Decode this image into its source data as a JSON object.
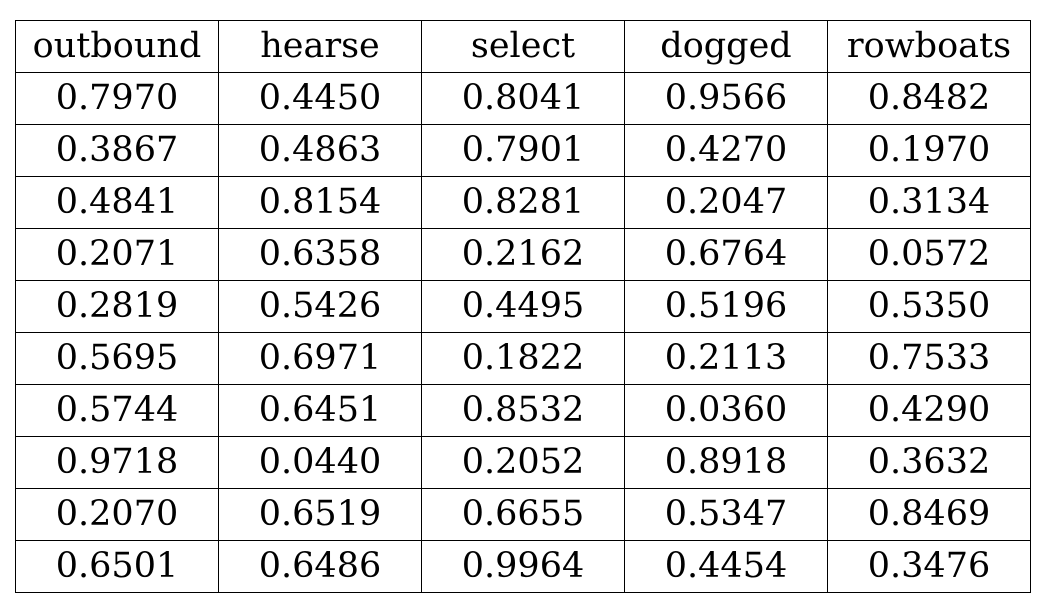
{
  "chart_data": {
    "type": "table",
    "columns": [
      "outbound",
      "hearse",
      "select",
      "dogged",
      "rowboats"
    ],
    "rows": [
      [
        "0.7970",
        "0.4450",
        "0.8041",
        "0.9566",
        "0.8482"
      ],
      [
        "0.3867",
        "0.4863",
        "0.7901",
        "0.4270",
        "0.1970"
      ],
      [
        "0.4841",
        "0.8154",
        "0.8281",
        "0.2047",
        "0.3134"
      ],
      [
        "0.2071",
        "0.6358",
        "0.2162",
        "0.6764",
        "0.0572"
      ],
      [
        "0.2819",
        "0.5426",
        "0.4495",
        "0.5196",
        "0.5350"
      ],
      [
        "0.5695",
        "0.6971",
        "0.1822",
        "0.2113",
        "0.7533"
      ],
      [
        "0.5744",
        "0.6451",
        "0.8532",
        "0.0360",
        "0.4290"
      ],
      [
        "0.9718",
        "0.0440",
        "0.2052",
        "0.8918",
        "0.3632"
      ],
      [
        "0.2070",
        "0.6519",
        "0.6655",
        "0.5347",
        "0.8469"
      ],
      [
        "0.6501",
        "0.6486",
        "0.9964",
        "0.4454",
        "0.3476"
      ]
    ]
  }
}
